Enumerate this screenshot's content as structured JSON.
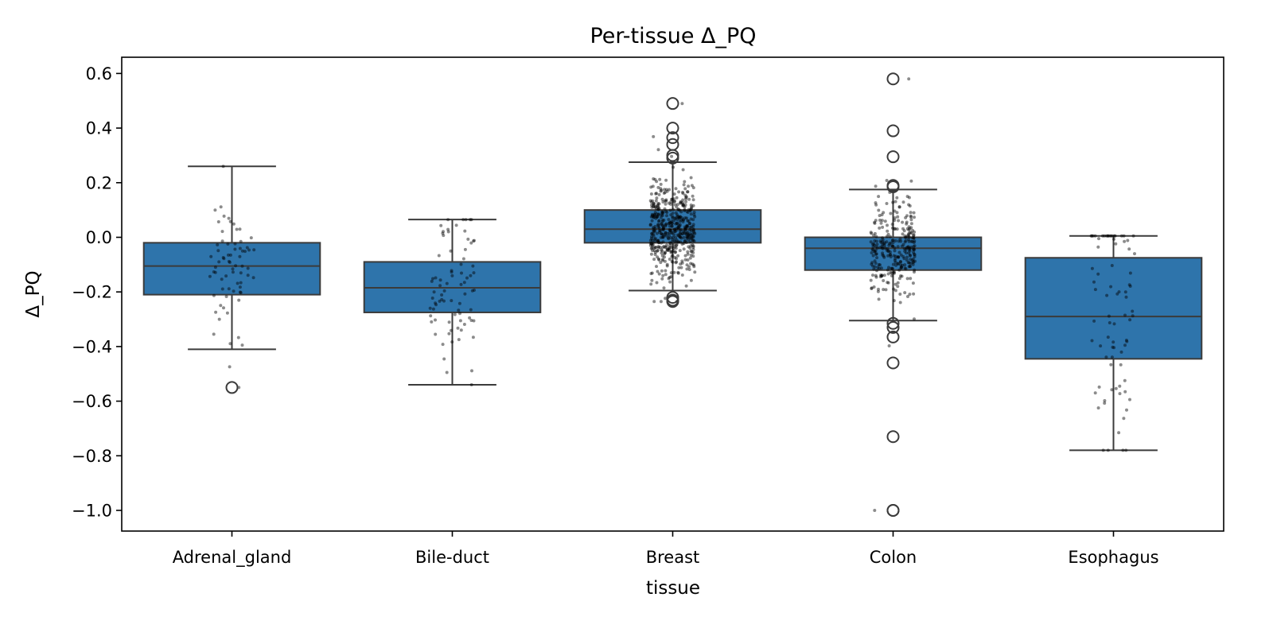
{
  "chart_data": {
    "type": "box",
    "title": "Per-tissue Δ_PQ",
    "xlabel": "tissue",
    "ylabel": "Δ_PQ",
    "ylim": [
      -1.06,
      0.66
    ],
    "yticks": [
      0.6,
      0.4,
      0.2,
      0.0,
      -0.2,
      -0.4,
      -0.6,
      -0.8,
      -1.0
    ],
    "ytick_labels": [
      "0.6",
      "0.4",
      "0.2",
      "0.0",
      "−0.2",
      "−0.4",
      "−0.6",
      "−0.8",
      "−1.0"
    ],
    "categories": [
      "Adrenal_gland",
      "Bile-duct",
      "Breast",
      "Colon",
      "Esophagus"
    ],
    "grid": false,
    "box_color": "#2e74ab",
    "line_color": "#3b3b3b",
    "boxes": [
      {
        "category": "Adrenal_gland",
        "whisker_low": -0.41,
        "q1": -0.21,
        "median": -0.105,
        "q3": -0.02,
        "whisker_high": 0.26,
        "outliers": [
          -0.55
        ]
      },
      {
        "category": "Bile-duct",
        "whisker_low": -0.54,
        "q1": -0.275,
        "median": -0.185,
        "q3": -0.09,
        "whisker_high": 0.065,
        "outliers": []
      },
      {
        "category": "Breast",
        "whisker_low": -0.195,
        "q1": -0.02,
        "median": 0.03,
        "q3": 0.1,
        "whisker_high": 0.275,
        "outliers": [
          0.49,
          0.4,
          0.365,
          0.34,
          0.3,
          0.29,
          -0.22,
          -0.23,
          -0.235
        ]
      },
      {
        "category": "Colon",
        "whisker_low": -0.305,
        "q1": -0.12,
        "median": -0.04,
        "q3": 0.0,
        "whisker_high": 0.175,
        "outliers": [
          0.58,
          0.39,
          0.295,
          0.19,
          0.185,
          -0.315,
          -0.33,
          -0.365,
          -0.46,
          -0.73,
          -1.0,
          -1.0
        ]
      },
      {
        "category": "Esophagus",
        "whisker_low": -0.78,
        "q1": -0.445,
        "median": -0.29,
        "q3": -0.075,
        "whisker_high": 0.005,
        "outliers": []
      }
    ],
    "points": [
      {
        "category": "Adrenal_gland",
        "count": 70,
        "min": -0.55,
        "max": 0.26
      },
      {
        "category": "Bile-duct",
        "count": 80,
        "min": -0.54,
        "max": 0.065
      },
      {
        "category": "Breast",
        "count": 500,
        "min": -0.235,
        "max": 0.49
      },
      {
        "category": "Colon",
        "count": 300,
        "min": -1.0,
        "max": 0.58
      },
      {
        "category": "Esophagus",
        "count": 80,
        "min": -0.78,
        "max": 0.005
      }
    ]
  }
}
